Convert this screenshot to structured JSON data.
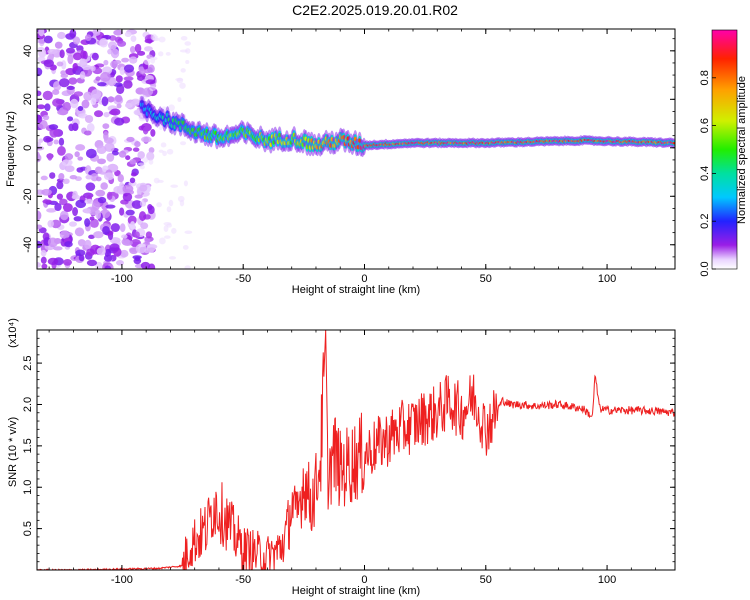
{
  "title": "C2E2.2025.019.20.01.R02",
  "chart_data": [
    {
      "type": "heatmap",
      "xlabel": "Height of straight line (km)",
      "ylabel": "Frequency (Hz)",
      "xlim": [
        -135,
        128
      ],
      "ylim": [
        -50,
        49
      ],
      "x_ticks": [
        "-100",
        "-50",
        "0",
        "50",
        "100"
      ],
      "y_ticks": [
        "-40",
        "-20",
        "0",
        "20",
        "40"
      ],
      "colorbar": {
        "label": "Normalized spectral amplitude",
        "range": [
          0.0,
          1.0
        ],
        "ticks": [
          "0.0",
          "0.2",
          "0.4",
          "0.6",
          "0.8"
        ]
      },
      "ridge": {
        "description_points_x": [
          -90,
          -80,
          -70,
          -60,
          -50,
          -40,
          -30,
          -20,
          -10,
          0,
          20,
          50,
          90,
          128
        ],
        "frequency": [
          16,
          11,
          7,
          4,
          6,
          3,
          4,
          1,
          3,
          1,
          2,
          2,
          3,
          2
        ],
        "peak_amplitude": [
          0.35,
          0.45,
          0.55,
          0.6,
          0.6,
          0.65,
          0.65,
          0.8,
          0.85,
          1.0,
          1.0,
          1.0,
          1.0,
          1.0
        ]
      },
      "noise_region_x": [
        -135,
        -87
      ]
    },
    {
      "type": "line",
      "xlabel": "Height of straight line (km)",
      "ylabel": "SNR (10 * v/v)",
      "y_multiplier": "(x10⁴)",
      "xlim": [
        -135,
        128
      ],
      "ylim": [
        0,
        2.9
      ],
      "x_ticks": [
        "-100",
        "-50",
        "0",
        "50",
        "100"
      ],
      "y_ticks": [
        "0.5",
        "1.0",
        "1.5",
        "2.0",
        "2.5"
      ],
      "color": "#ee2020",
      "series": [
        {
          "x": [
            -135,
            -120,
            -100,
            -85,
            -75,
            -72,
            -65,
            -62,
            -58,
            -55,
            -50,
            -45,
            -40,
            -35,
            -32,
            -30,
            -28,
            -25,
            -22,
            -20,
            -18,
            -16,
            -15,
            -12,
            -10,
            -5,
            0,
            5,
            10,
            15,
            20,
            25,
            30,
            35,
            40,
            45,
            50,
            55,
            57,
            60,
            65,
            70,
            80,
            90,
            94,
            95,
            97,
            100,
            110,
            120,
            128
          ],
          "y": [
            0.0,
            0.0,
            0.01,
            0.02,
            0.05,
            0.3,
            0.5,
            0.8,
            0.65,
            0.5,
            0.25,
            0.2,
            0.15,
            0.25,
            0.45,
            0.8,
            0.6,
            1.1,
            0.8,
            1.0,
            1.4,
            2.9,
            1.2,
            1.4,
            1.2,
            1.3,
            1.4,
            1.5,
            1.6,
            1.7,
            1.75,
            1.85,
            1.9,
            2.05,
            1.9,
            2.1,
            1.7,
            1.95,
            2.05,
            2.0,
            2.0,
            1.98,
            2.0,
            1.95,
            1.85,
            2.35,
            1.95,
            1.93,
            1.93,
            1.92,
            1.9
          ]
        }
      ]
    }
  ]
}
